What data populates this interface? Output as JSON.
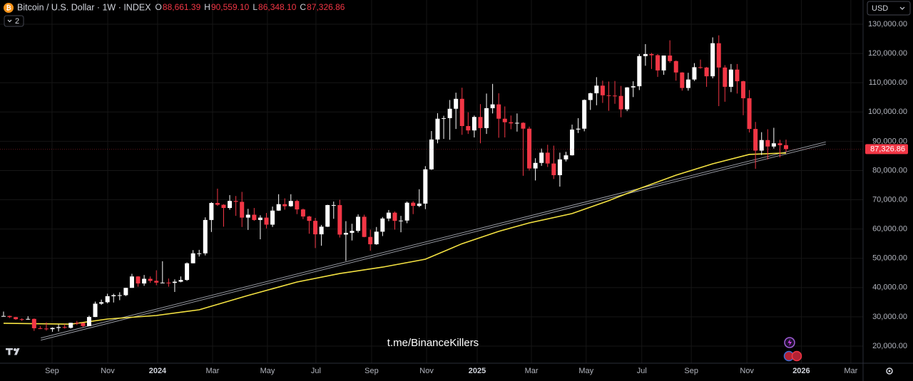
{
  "chart_data": {
    "type": "candlestick",
    "title": "Bitcoin / U.S. Dollar · 1W · INDEX",
    "header_values": [
      {
        "label": "O",
        "value": "88,661.39"
      },
      {
        "label": "H",
        "value": "90,559.10"
      },
      {
        "label": "L",
        "value": "86,348.10"
      },
      {
        "label": "C",
        "value": "87,326.86"
      }
    ],
    "last_price_label": "87,326.86",
    "currency": "USD",
    "indicator_count": "2",
    "watermark": "t.me/BinanceKillers",
    "up_color": "#ffffff",
    "down_color": "#f23645",
    "grid": true,
    "open": [
      30200,
      30300,
      29900,
      29200,
      29050,
      29300,
      26100,
      26000,
      25800,
      26200,
      26500,
      26250,
      27950,
      27900,
      26850,
      29950,
      34500,
      35000,
      37050,
      37400,
      37400,
      39900,
      43800,
      41400,
      43000,
      42300,
      41700,
      41700,
      41600,
      42000,
      42600,
      48300,
      51700,
      51700,
      63100,
      68900,
      68300,
      67200,
      69600,
      69300,
      63900,
      64900,
      63100,
      63900,
      61500,
      66300,
      68500,
      67800,
      69600,
      66700,
      64300,
      62800,
      58200,
      60800,
      68200,
      68200,
      58100,
      58700,
      59400,
      64200,
      57300,
      54800,
      59100,
      63600,
      65600,
      62800,
      62900,
      69000,
      67900,
      68700,
      80400,
      90600,
      97700,
      97900,
      101100,
      104500,
      95200,
      93700,
      98300,
      94500,
      101300,
      102600,
      97700,
      96500,
      96100,
      96300,
      94300,
      80700,
      82600,
      86100,
      82400,
      78400,
      83800,
      85200,
      94000,
      94300,
      104100,
      106400,
      109000,
      105700,
      105600,
      105500,
      100900,
      108400,
      108800,
      119100,
      119800,
      119400,
      114200,
      119300,
      117400,
      113500,
      108200,
      111100,
      115300,
      115200,
      112200,
      123500,
      115200,
      108600,
      114500,
      110500,
      104700,
      94200,
      86800,
      90400,
      88200,
      89300,
      88661.39
    ],
    "high": [
      31800,
      30400,
      30000,
      29500,
      30200,
      29450,
      26800,
      28100,
      26400,
      27400,
      27500,
      28000,
      28600,
      27950,
      30400,
      35200,
      35900,
      37900,
      37900,
      38400,
      39900,
      44700,
      43900,
      44300,
      43800,
      45900,
      49000,
      43100,
      42800,
      43800,
      48600,
      52800,
      52900,
      64000,
      69200,
      73800,
      68500,
      71600,
      71300,
      72700,
      66900,
      67200,
      64700,
      65500,
      67700,
      71900,
      70500,
      71900,
      70000,
      67000,
      64500,
      63800,
      61400,
      68300,
      69400,
      70000,
      62700,
      61800,
      65000,
      64900,
      59800,
      60700,
      64100,
      66500,
      66000,
      64500,
      69400,
      69500,
      73600,
      81500,
      93500,
      99600,
      98700,
      104100,
      106600,
      108300,
      99900,
      98800,
      102700,
      106300,
      109600,
      106400,
      101900,
      98800,
      99500,
      96500,
      95000,
      84200,
      87500,
      88800,
      88500,
      86100,
      86400,
      95700,
      97900,
      104300,
      106600,
      111900,
      110700,
      110400,
      110600,
      108900,
      108500,
      110500,
      119800,
      123200,
      120200,
      119800,
      119300,
      124500,
      117600,
      113600,
      113400,
      116700,
      117900,
      115400,
      125500,
      126200,
      116000,
      116400,
      116400,
      110700,
      107500,
      96600,
      93100,
      94100,
      94600,
      90500,
      90559.1
    ],
    "low": [
      30100,
      29600,
      29000,
      28600,
      29000,
      25200,
      25800,
      25300,
      24900,
      25000,
      26000,
      26000,
      27200,
      26500,
      26800,
      29900,
      34100,
      34600,
      34900,
      35700,
      37100,
      39900,
      40300,
      40600,
      41600,
      40800,
      41500,
      40300,
      38500,
      41800,
      42300,
      48300,
      50600,
      51000,
      59000,
      67900,
      60800,
      66600,
      64500,
      60700,
      59700,
      62800,
      56500,
      60200,
      60700,
      66200,
      66600,
      67600,
      65100,
      63400,
      58400,
      53500,
      54300,
      60700,
      63500,
      57100,
      49100,
      56100,
      58800,
      57200,
      52600,
      54600,
      57600,
      62700,
      59800,
      58900,
      62000,
      65100,
      67500,
      66800,
      80200,
      89300,
      90800,
      90500,
      94200,
      92200,
      92500,
      91300,
      89300,
      92500,
      99500,
      91200,
      91300,
      94100,
      93300,
      78200,
      80000,
      76600,
      81600,
      81200,
      77100,
      74500,
      83100,
      85100,
      92800,
      93400,
      100700,
      102300,
      103100,
      100400,
      102800,
      98200,
      100300,
      105100,
      107500,
      115800,
      114700,
      112000,
      112700,
      116800,
      110700,
      107300,
      107300,
      110600,
      114800,
      108600,
      111500,
      102000,
      103500,
      106800,
      106300,
      98900,
      93000,
      80600,
      85300,
      83800,
      87500,
      84500,
      86348.1
    ],
    "close": [
      30300,
      29900,
      29200,
      29050,
      29300,
      26100,
      26000,
      25800,
      26200,
      26500,
      26250,
      27950,
      27900,
      26850,
      29950,
      34500,
      35000,
      37050,
      37400,
      37400,
      39900,
      43800,
      41400,
      43000,
      42300,
      41700,
      41700,
      41600,
      42000,
      42600,
      48300,
      51700,
      51700,
      63100,
      68900,
      68300,
      67200,
      69600,
      69300,
      63900,
      64900,
      63100,
      63900,
      61500,
      66300,
      68500,
      67800,
      69600,
      66700,
      64300,
      62800,
      58200,
      60800,
      68200,
      68200,
      58100,
      58700,
      59400,
      64200,
      57300,
      54800,
      59100,
      63600,
      65600,
      62800,
      62900,
      69000,
      67900,
      68700,
      80400,
      90600,
      97700,
      97900,
      101100,
      104500,
      95200,
      93700,
      98300,
      94500,
      101300,
      102600,
      97700,
      96500,
      96100,
      96300,
      94300,
      80700,
      82600,
      86100,
      82400,
      78400,
      83800,
      85200,
      94000,
      94300,
      104100,
      106400,
      109000,
      105700,
      105600,
      105500,
      100900,
      108400,
      108800,
      119100,
      119800,
      119400,
      114200,
      119300,
      117400,
      113500,
      108200,
      111100,
      115300,
      115200,
      112200,
      123500,
      115200,
      108600,
      114500,
      110500,
      104700,
      94200,
      86800,
      90400,
      88200,
      89300,
      88661.39,
      87326.86
    ],
    "moving_average": {
      "color": "#f5e342",
      "x": [
        0,
        11,
        17,
        25,
        32,
        40,
        48,
        55,
        62,
        69,
        75,
        81,
        86,
        93,
        99,
        104,
        110,
        116,
        122,
        128
      ],
      "values": [
        27800,
        27500,
        29250,
        30470,
        32400,
        37300,
        41900,
        44800,
        47000,
        49700,
        55000,
        59200,
        62100,
        65300,
        69700,
        73800,
        78400,
        82300,
        85500,
        86000
      ]
    },
    "trendline": {
      "color": "#9598a1",
      "x": [
        6.1,
        134.5
      ],
      "values": [
        22400,
        89400
      ]
    },
    "xlim": [
      -0.58,
      140.6
    ],
    "ylim": [
      14160,
      138270
    ],
    "xticks": [
      {
        "value": 7.93,
        "label": "Sep"
      },
      {
        "value": 17.04,
        "label": "Nov"
      },
      {
        "value": 25.2,
        "label": "2024"
      },
      {
        "value": 34.19,
        "label": "Mar"
      },
      {
        "value": 43.17,
        "label": "May"
      },
      {
        "value": 51.1,
        "label": "Jul"
      },
      {
        "value": 60.2,
        "label": "Sep"
      },
      {
        "value": 69.2,
        "label": "Nov"
      },
      {
        "value": 77.48,
        "label": "2025"
      },
      {
        "value": 86.35,
        "label": "Mar"
      },
      {
        "value": 95.3,
        "label": "May"
      },
      {
        "value": 104.4,
        "label": "Jul"
      },
      {
        "value": 112.5,
        "label": "Sep"
      },
      {
        "value": 121.6,
        "label": "Nov"
      },
      {
        "value": 130.5,
        "label": "2026"
      },
      {
        "value": 138.6,
        "label": "Mar"
      }
    ],
    "yticks": [
      {
        "value": 20000,
        "label": "20,000.00"
      },
      {
        "value": 30000,
        "label": "30,000.00"
      },
      {
        "value": 40000,
        "label": "40,000.00"
      },
      {
        "value": 50000,
        "label": "50,000.00"
      },
      {
        "value": 60000,
        "label": "60,000.00"
      },
      {
        "value": 70000,
        "label": "70,000.00"
      },
      {
        "value": 80000,
        "label": "80,000.00"
      },
      {
        "value": 90000,
        "label": "90,000.00"
      },
      {
        "value": 100000,
        "label": "100,000.00"
      },
      {
        "value": 110000,
        "label": "110,000.00"
      },
      {
        "value": 120000,
        "label": "120,000.00"
      },
      {
        "value": 130000,
        "label": "130,000.00"
      }
    ]
  }
}
